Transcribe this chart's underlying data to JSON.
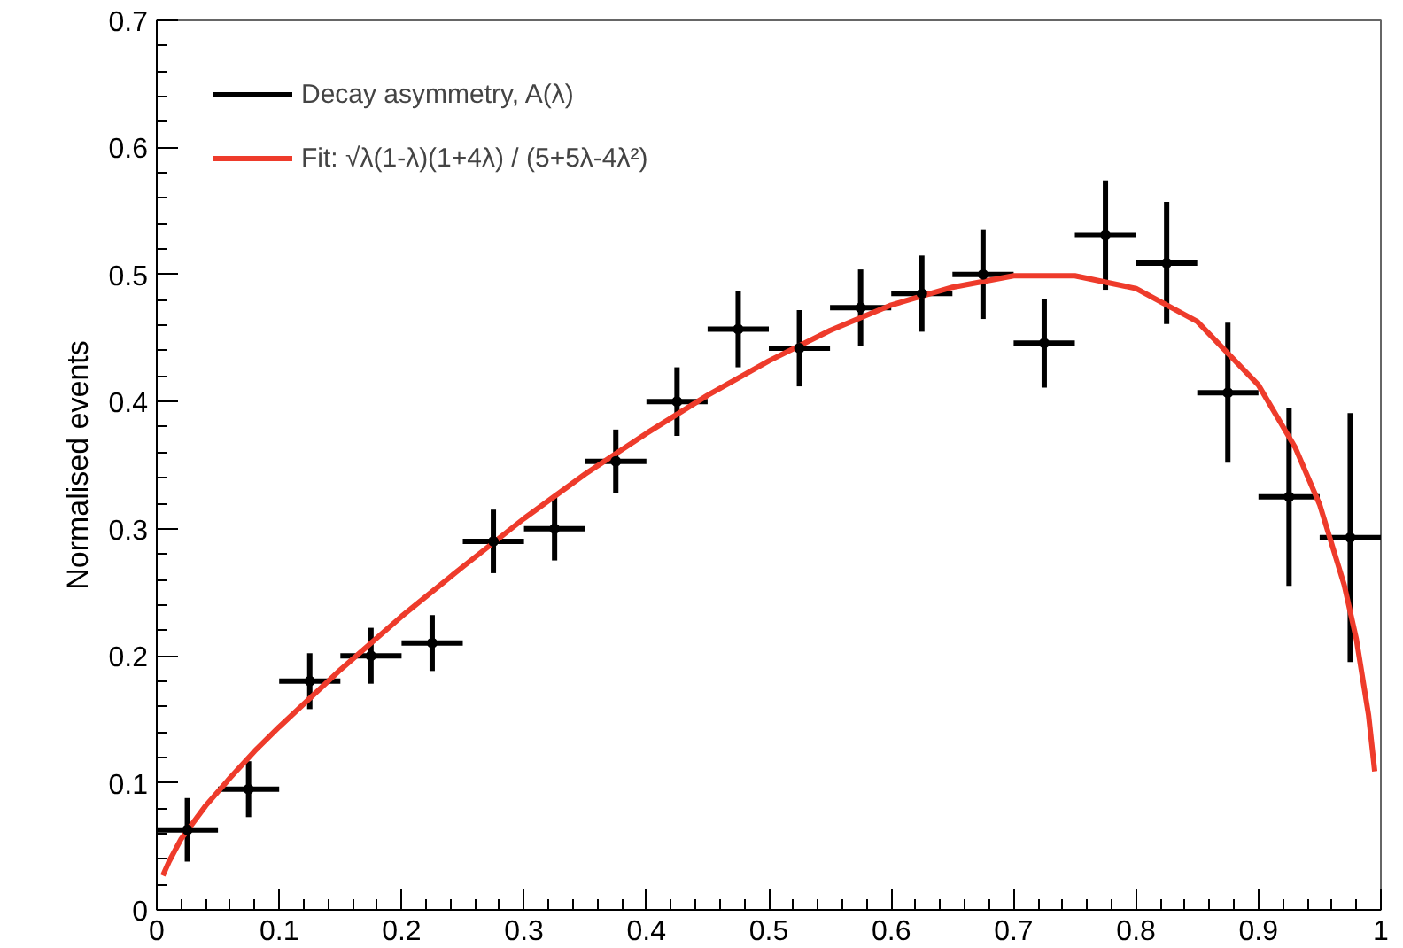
{
  "chart_data": {
    "type": "scatter",
    "ylabel": "Normalised events",
    "xlim": [
      0,
      1
    ],
    "ylim": [
      0,
      0.7
    ],
    "xticks": [
      0,
      0.1,
      0.2,
      0.3,
      0.4,
      0.5,
      0.6,
      0.7,
      0.8,
      0.9,
      1
    ],
    "yticks": [
      0,
      0.1,
      0.2,
      0.3,
      0.4,
      0.5,
      0.6,
      0.7
    ],
    "grid": false,
    "legend": "top left",
    "series": [
      {
        "name": "Decay asymmetry, A(λ)",
        "color": "#000000",
        "marker": "circle",
        "x": [
          0.025,
          0.075,
          0.125,
          0.175,
          0.225,
          0.275,
          0.325,
          0.375,
          0.425,
          0.475,
          0.525,
          0.575,
          0.625,
          0.675,
          0.725,
          0.775,
          0.825,
          0.875,
          0.925,
          0.975
        ],
        "values": [
          0.063,
          0.095,
          0.18,
          0.2,
          0.21,
          0.29,
          0.3,
          0.353,
          0.4,
          0.457,
          0.442,
          0.474,
          0.485,
          0.5,
          0.446,
          0.531,
          0.509,
          0.407,
          0.325,
          0.293
        ],
        "errors": [
          0.025,
          0.022,
          0.022,
          0.022,
          0.022,
          0.025,
          0.025,
          0.025,
          0.027,
          0.03,
          0.03,
          0.03,
          0.03,
          0.035,
          0.035,
          0.043,
          0.048,
          0.055,
          0.07,
          0.098
        ],
        "xerrors": [
          0.025,
          0.025,
          0.025,
          0.025,
          0.025,
          0.025,
          0.025,
          0.025,
          0.025,
          0.025,
          0.025,
          0.025,
          0.025,
          0.025,
          0.025,
          0.025,
          0.025,
          0.025,
          0.025,
          0.025
        ]
      },
      {
        "name": "Fit: √λ(1-λ)(1+4λ) / (5+5λ-4λ²)",
        "type": "line",
        "color": "#ee3b2b",
        "line_style": "solid",
        "marker": "none",
        "x": [
          0.005,
          0.01,
          0.02,
          0.04,
          0.06,
          0.08,
          0.1,
          0.15,
          0.2,
          0.25,
          0.3,
          0.35,
          0.4,
          0.45,
          0.5,
          0.55,
          0.6,
          0.65,
          0.7,
          0.75,
          0.8,
          0.85,
          0.9,
          0.93,
          0.95,
          0.97,
          0.98,
          0.99,
          0.995
        ],
        "values": [
          0.027,
          0.038,
          0.056,
          0.082,
          0.104,
          0.125,
          0.144,
          0.189,
          0.231,
          0.27,
          0.308,
          0.343,
          0.375,
          0.405,
          0.432,
          0.456,
          0.476,
          0.49,
          0.499,
          0.499,
          0.489,
          0.463,
          0.413,
          0.364,
          0.319,
          0.256,
          0.213,
          0.153,
          0.109
        ]
      }
    ]
  }
}
